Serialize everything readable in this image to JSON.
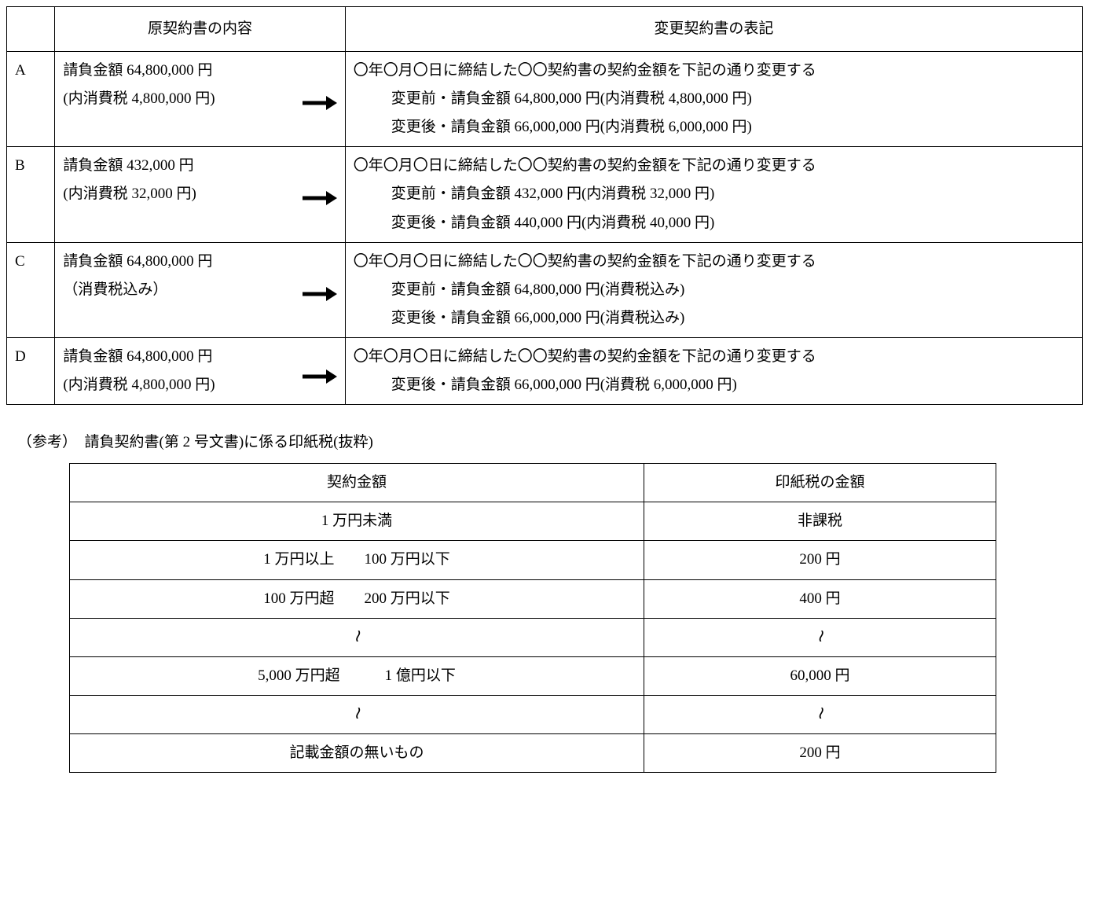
{
  "table1": {
    "headers": {
      "blank": "",
      "orig": "原契約書の内容",
      "changed": "変更契約書の表記"
    },
    "rows": [
      {
        "id": "A",
        "orig1": "請負金額 64,800,000 円",
        "orig2": "(内消費税 4,800,000 円)",
        "chg0": "〇年〇月〇日に締結した〇〇契約書の契約金額を下記の通り変更する",
        "chg1": "変更前・請負金額 64,800,000 円(内消費税 4,800,000 円)",
        "chg2": "変更後・請負金額 66,000,000 円(内消費税 6,000,000 円)"
      },
      {
        "id": "B",
        "orig1": "請負金額 432,000 円",
        "orig2": "(内消費税 32,000 円)",
        "chg0": "〇年〇月〇日に締結した〇〇契約書の契約金額を下記の通り変更する",
        "chg1": "変更前・請負金額 432,000 円(内消費税 32,000 円)",
        "chg2": "変更後・請負金額 440,000 円(内消費税 40,000 円)"
      },
      {
        "id": "C",
        "orig1": "請負金額 64,800,000 円",
        "orig2": "（消費税込み）",
        "chg0": "〇年〇月〇日に締結した〇〇契約書の契約金額を下記の通り変更する",
        "chg1": "変更前・請負金額 64,800,000 円(消費税込み)",
        "chg2": "変更後・請負金額 66,000,000 円(消費税込み)"
      },
      {
        "id": "D",
        "orig1": "請負金額 64,800,000 円",
        "orig2": "(内消費税 4,800,000 円)",
        "chg0": "〇年〇月〇日に締結した〇〇契約書の契約金額を下記の通り変更する",
        "chg1": "",
        "chg2": "変更後・請負金額 66,000,000 円(消費税 6,000,000 円)"
      }
    ]
  },
  "ref": {
    "caption": "（参考）　請負契約書(第 2 号文書)に係る印紙税(抜粋)",
    "headers": {
      "amount": "契約金額",
      "tax": "印紙税の金額"
    },
    "rows": [
      {
        "amount": "1 万円未満",
        "tax": "非課税"
      },
      {
        "amount": "1 万円以上　　100 万円以下",
        "tax": "200 円"
      },
      {
        "amount": "100 万円超　　200 万円以下",
        "tax": "400 円"
      },
      {
        "amount": "〜",
        "tax": "〜",
        "tilde": true
      },
      {
        "amount": "5,000 万円超　　　1 億円以下",
        "tax": "60,000 円"
      },
      {
        "amount": "〜",
        "tax": "〜",
        "tilde": true
      },
      {
        "amount": "記載金額の無いもの",
        "tax": "200 円"
      }
    ]
  },
  "style": {
    "text_color": "#000000",
    "bg_color": "#ffffff",
    "border_color": "#000000",
    "base_fontsize_pt": 14,
    "arrow_color": "#000000"
  }
}
